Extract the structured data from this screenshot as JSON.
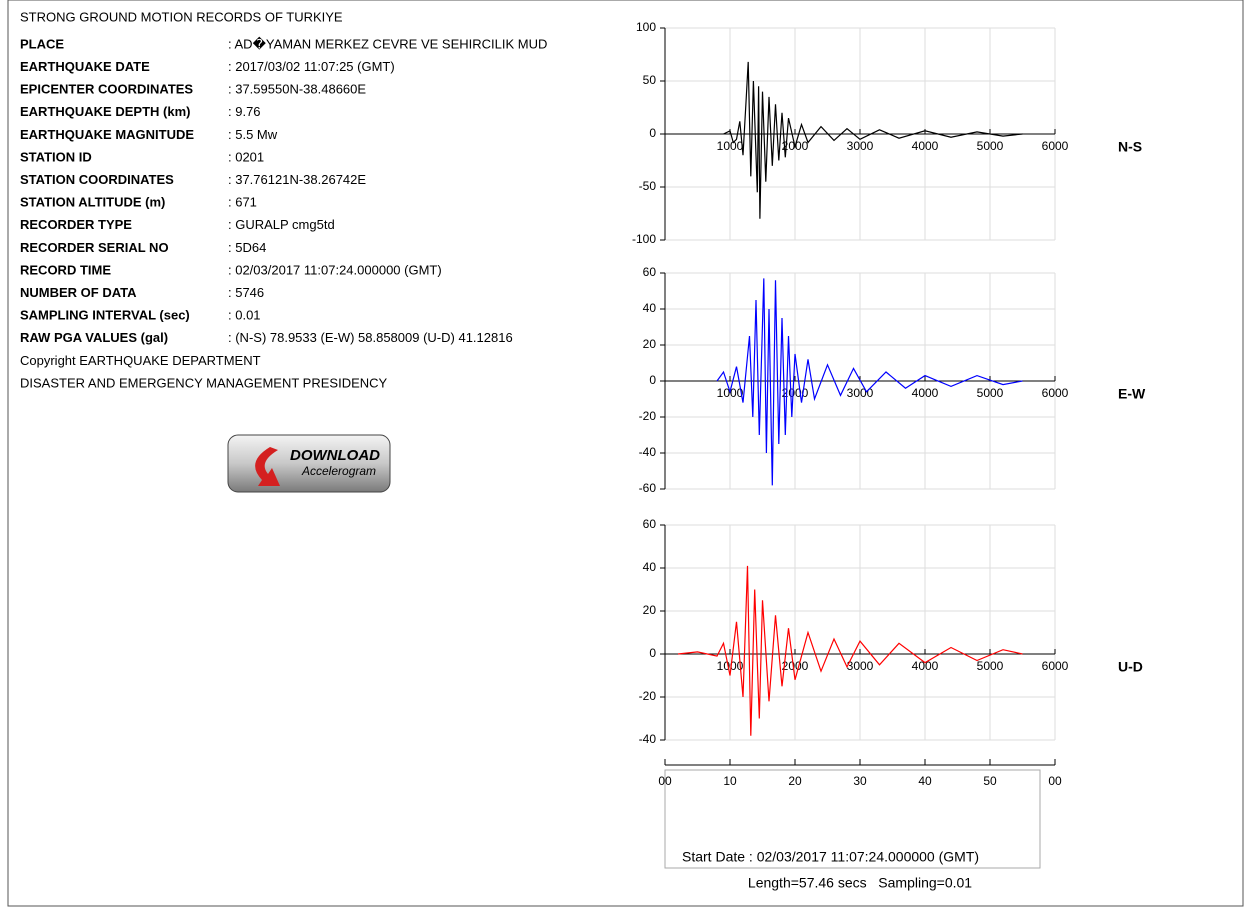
{
  "header": {
    "title": "STRONG GROUND MOTION RECORDS OF TURKIYE"
  },
  "fields": [
    {
      "label": "PLACE",
      "value": ": AD�YAMAN MERKEZ CEVRE VE SEHIRCILIK MUD"
    },
    {
      "label": "EARTHQUAKE DATE",
      "value": ": 2017/03/02 11:07:25 (GMT)"
    },
    {
      "label": "EPICENTER COORDINATES",
      "value": ": 37.59550N-38.48660E"
    },
    {
      "label": "EARTHQUAKE DEPTH (km)",
      "value": ": 9.76"
    },
    {
      "label": "EARTHQUAKE MAGNITUDE",
      "value": ": 5.5 Mw"
    },
    {
      "label": "STATION ID",
      "value": ": 0201"
    },
    {
      "label": "STATION COORDINATES",
      "value": ": 37.76121N-38.26742E"
    },
    {
      "label": "STATION ALTITUDE (m)",
      "value": ": 671"
    },
    {
      "label": "RECORDER TYPE",
      "value": ": GURALP cmg5td"
    },
    {
      "label": "RECORDER SERIAL NO",
      "value": ": 5D64"
    },
    {
      "label": "RECORD TIME",
      "value": ": 02/03/2017 11:07:24.000000 (GMT)"
    },
    {
      "label": "NUMBER OF DATA",
      "value": ": 5746"
    },
    {
      "label": "SAMPLING INTERVAL (sec)",
      "value": ": 0.01"
    },
    {
      "label": "RAW PGA VALUES (gal)",
      "value": ": (N-S) 78.9533 (E-W) 58.858009 (U-D) 41.12816"
    }
  ],
  "notes": [
    "Copyright EARTHQUAKE DEPARTMENT",
    "DISASTER AND EMERGENCY MANAGEMENT PRESIDENCY"
  ],
  "button": {
    "title": "DOWNLOAD",
    "subtitle": "Accelerogram"
  },
  "chart_data": [
    {
      "type": "line",
      "name": "N-S",
      "color": "#000000",
      "xlim": [
        0,
        6000
      ],
      "ylim": [
        -100,
        100
      ],
      "xticks": [
        1000,
        2000,
        3000,
        4000,
        5000,
        6000
      ],
      "yticks": [
        -100,
        -50,
        0,
        50,
        100
      ],
      "grid": true,
      "x": [
        900,
        1000,
        1050,
        1100,
        1150,
        1200,
        1250,
        1280,
        1320,
        1360,
        1420,
        1440,
        1460,
        1500,
        1550,
        1600,
        1650,
        1700,
        1750,
        1800,
        1850,
        1900,
        2000,
        2100,
        2200,
        2400,
        2600,
        2800,
        3000,
        3300,
        3600,
        4000,
        4400,
        4800,
        5200,
        5500
      ],
      "values": [
        0,
        3,
        -8,
        -5,
        12,
        -20,
        35,
        68,
        -40,
        50,
        -55,
        45,
        -80,
        40,
        -45,
        35,
        -30,
        28,
        -25,
        20,
        -22,
        15,
        -12,
        9,
        -8,
        7,
        -6,
        5,
        -5,
        4,
        -4,
        3,
        -3,
        2,
        -2,
        0
      ]
    },
    {
      "type": "line",
      "name": "E-W",
      "color": "#0000ff",
      "xlim": [
        0,
        6000
      ],
      "ylim": [
        -60,
        60
      ],
      "xticks": [
        1000,
        2000,
        3000,
        4000,
        5000,
        6000
      ],
      "yticks": [
        -60,
        -40,
        -20,
        0,
        20,
        40,
        60
      ],
      "grid": true,
      "x": [
        800,
        900,
        1000,
        1100,
        1200,
        1300,
        1350,
        1400,
        1450,
        1520,
        1560,
        1600,
        1650,
        1700,
        1750,
        1800,
        1850,
        1900,
        1950,
        2000,
        2100,
        2200,
        2300,
        2500,
        2700,
        2900,
        3100,
        3400,
        3700,
        4000,
        4400,
        4800,
        5200,
        5500
      ],
      "values": [
        0,
        5,
        -6,
        8,
        -12,
        25,
        -20,
        45,
        -30,
        57,
        -40,
        40,
        -58,
        56,
        -35,
        35,
        -30,
        25,
        -20,
        15,
        -12,
        12,
        -10,
        9,
        -8,
        7,
        -6,
        5,
        -4,
        3,
        -3,
        3,
        -2,
        0
      ]
    },
    {
      "type": "line",
      "name": "U-D",
      "color": "#ff0000",
      "xlim": [
        0,
        6000
      ],
      "ylim": [
        -40,
        60
      ],
      "xticks": [
        1000,
        2000,
        3000,
        4000,
        5000,
        6000
      ],
      "yticks": [
        -40,
        -20,
        0,
        20,
        40,
        60
      ],
      "grid": true,
      "x": [
        200,
        500,
        800,
        900,
        1000,
        1100,
        1200,
        1270,
        1320,
        1380,
        1450,
        1500,
        1600,
        1700,
        1800,
        1900,
        2000,
        2200,
        2400,
        2600,
        2800,
        3000,
        3300,
        3600,
        4000,
        4400,
        4800,
        5200,
        5500
      ],
      "values": [
        0,
        1,
        -1,
        5,
        -10,
        15,
        -20,
        41,
        -38,
        30,
        -30,
        25,
        -22,
        18,
        -15,
        12,
        -12,
        10,
        -8,
        7,
        -6,
        6,
        -5,
        5,
        -4,
        3,
        -3,
        2,
        0
      ]
    }
  ],
  "time_axis": {
    "xlim": [
      0,
      60
    ],
    "xticks": [
      {
        "value": 0,
        "label": "00"
      },
      10,
      20,
      30,
      40,
      50,
      {
        "value": 60,
        "label": "00"
      }
    ]
  },
  "footer": {
    "start": "Start Date :  02/03/2017 11:07:24.000000 (GMT)",
    "length": "Length=57.46 secs   Sampling=0.01"
  }
}
